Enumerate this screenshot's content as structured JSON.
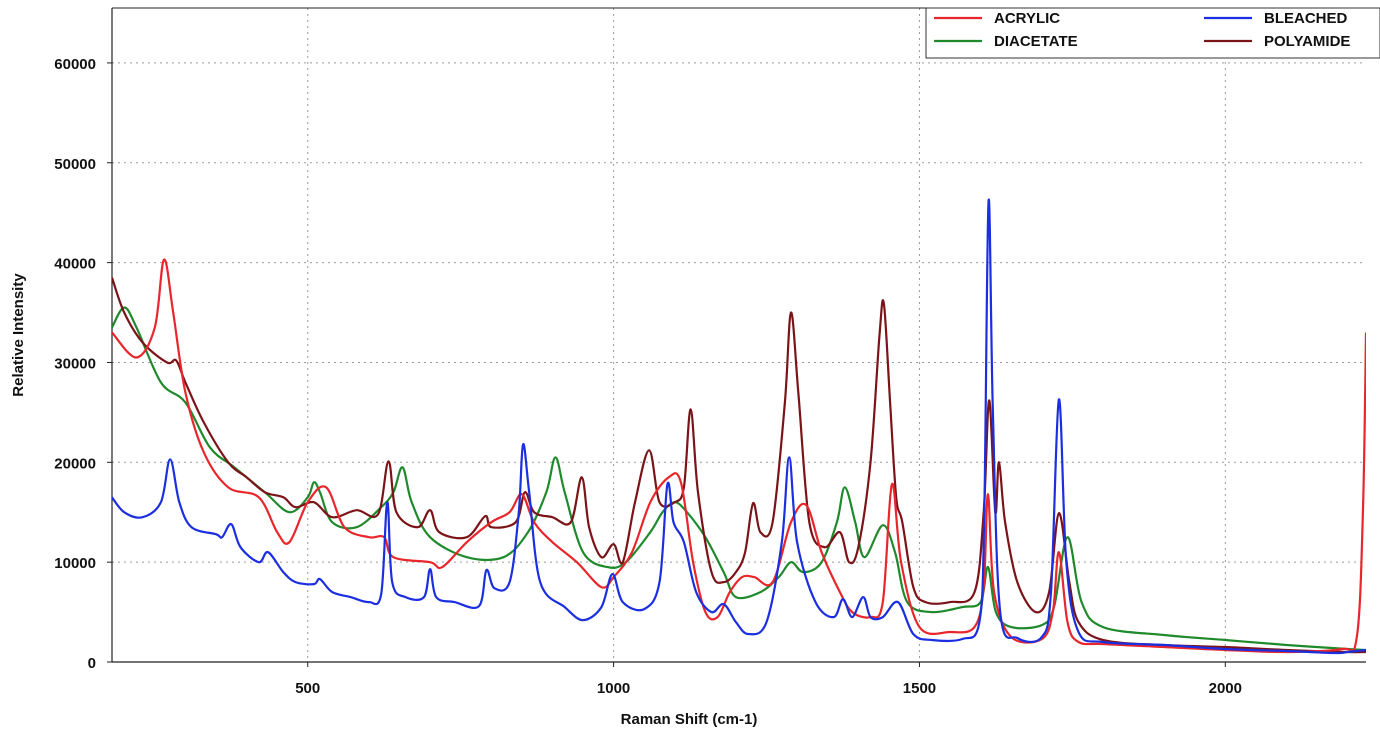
{
  "chart_data": {
    "type": "line",
    "title": "",
    "xlabel": "Raman Shift (cm-1)",
    "ylabel": "Relative Intensity",
    "xlim": [
      180,
      2230
    ],
    "ylim": [
      0,
      65500
    ],
    "x_ticks": [
      500,
      1000,
      1500,
      2000
    ],
    "x_tick_labels": [
      "500",
      "1000",
      "1500",
      "2000"
    ],
    "y_ticks": [
      0,
      10000,
      20000,
      30000,
      40000,
      50000,
      60000
    ],
    "y_tick_labels": [
      "0",
      "10000",
      "20000",
      "30000",
      "40000",
      "50000",
      "60000"
    ],
    "grid": true,
    "legend_position": "top-right",
    "series": [
      {
        "name": "ACRYLIC",
        "color": "#e8262c",
        "points": [
          [
            180,
            33000
          ],
          [
            220,
            30500
          ],
          [
            250,
            33500
          ],
          [
            265,
            40300
          ],
          [
            280,
            35000
          ],
          [
            300,
            27000
          ],
          [
            330,
            21000
          ],
          [
            370,
            17500
          ],
          [
            420,
            16500
          ],
          [
            450,
            13000
          ],
          [
            470,
            12000
          ],
          [
            500,
            16000
          ],
          [
            530,
            17500
          ],
          [
            560,
            13500
          ],
          [
            600,
            12500
          ],
          [
            625,
            12500
          ],
          [
            640,
            10500
          ],
          [
            700,
            10000
          ],
          [
            720,
            9500
          ],
          [
            760,
            12000
          ],
          [
            800,
            14000
          ],
          [
            830,
            15000
          ],
          [
            850,
            16800
          ],
          [
            870,
            14000
          ],
          [
            900,
            12000
          ],
          [
            940,
            10000
          ],
          [
            980,
            7500
          ],
          [
            1000,
            8500
          ],
          [
            1030,
            11000
          ],
          [
            1060,
            16000
          ],
          [
            1090,
            18500
          ],
          [
            1110,
            18000
          ],
          [
            1130,
            10000
          ],
          [
            1150,
            5000
          ],
          [
            1170,
            4500
          ],
          [
            1190,
            7000
          ],
          [
            1210,
            8500
          ],
          [
            1230,
            8500
          ],
          [
            1260,
            8000
          ],
          [
            1290,
            14000
          ],
          [
            1315,
            15700
          ],
          [
            1340,
            11000
          ],
          [
            1370,
            7000
          ],
          [
            1390,
            5000
          ],
          [
            1420,
            4500
          ],
          [
            1440,
            6000
          ],
          [
            1455,
            17800
          ],
          [
            1470,
            10000
          ],
          [
            1500,
            3500
          ],
          [
            1550,
            3000
          ],
          [
            1590,
            3500
          ],
          [
            1605,
            7500
          ],
          [
            1612,
            16800
          ],
          [
            1622,
            7000
          ],
          [
            1650,
            2500
          ],
          [
            1700,
            2300
          ],
          [
            1718,
            5000
          ],
          [
            1728,
            11000
          ],
          [
            1742,
            4000
          ],
          [
            1760,
            2000
          ],
          [
            1800,
            1800
          ],
          [
            1900,
            1500
          ],
          [
            2000,
            1200
          ],
          [
            2100,
            1000
          ],
          [
            2190,
            1300
          ],
          [
            2215,
            2500
          ],
          [
            2225,
            15000
          ],
          [
            2230,
            33000
          ]
        ]
      },
      {
        "name": "DIACETATE",
        "color": "#1f8a2c",
        "points": [
          [
            180,
            33500
          ],
          [
            200,
            35500
          ],
          [
            220,
            33500
          ],
          [
            260,
            28000
          ],
          [
            300,
            26000
          ],
          [
            340,
            21500
          ],
          [
            380,
            19500
          ],
          [
            430,
            17000
          ],
          [
            470,
            15000
          ],
          [
            500,
            16500
          ],
          [
            510,
            18000
          ],
          [
            520,
            17000
          ],
          [
            540,
            14000
          ],
          [
            580,
            13500
          ],
          [
            620,
            15500
          ],
          [
            640,
            17000
          ],
          [
            655,
            19500
          ],
          [
            670,
            16000
          ],
          [
            700,
            12500
          ],
          [
            760,
            10500
          ],
          [
            820,
            10500
          ],
          [
            860,
            13000
          ],
          [
            890,
            17000
          ],
          [
            905,
            20500
          ],
          [
            920,
            17000
          ],
          [
            950,
            11000
          ],
          [
            990,
            9500
          ],
          [
            1020,
            10000
          ],
          [
            1060,
            13000
          ],
          [
            1080,
            15000
          ],
          [
            1100,
            16000
          ],
          [
            1120,
            15000
          ],
          [
            1150,
            12500
          ],
          [
            1180,
            9000
          ],
          [
            1200,
            6500
          ],
          [
            1240,
            7000
          ],
          [
            1270,
            8500
          ],
          [
            1290,
            10000
          ],
          [
            1310,
            9000
          ],
          [
            1340,
            10000
          ],
          [
            1365,
            14000
          ],
          [
            1378,
            17500
          ],
          [
            1395,
            14000
          ],
          [
            1410,
            10500
          ],
          [
            1440,
            13700
          ],
          [
            1460,
            11000
          ],
          [
            1480,
            6000
          ],
          [
            1520,
            5000
          ],
          [
            1570,
            5500
          ],
          [
            1600,
            6000
          ],
          [
            1612,
            9500
          ],
          [
            1625,
            5000
          ],
          [
            1650,
            3500
          ],
          [
            1700,
            3700
          ],
          [
            1720,
            5500
          ],
          [
            1742,
            12500
          ],
          [
            1765,
            6000
          ],
          [
            1800,
            3500
          ],
          [
            1900,
            2700
          ],
          [
            2000,
            2200
          ],
          [
            2100,
            1700
          ],
          [
            2200,
            1300
          ],
          [
            2230,
            1200
          ]
        ]
      },
      {
        "name": "BLEACHED",
        "color": "#1b2fe0",
        "points": [
          [
            180,
            16500
          ],
          [
            200,
            15000
          ],
          [
            230,
            14500
          ],
          [
            260,
            16000
          ],
          [
            275,
            20300
          ],
          [
            290,
            16000
          ],
          [
            310,
            13500
          ],
          [
            350,
            12800
          ],
          [
            360,
            12500
          ],
          [
            375,
            13800
          ],
          [
            390,
            11500
          ],
          [
            420,
            10000
          ],
          [
            435,
            11000
          ],
          [
            460,
            9000
          ],
          [
            480,
            8000
          ],
          [
            510,
            7800
          ],
          [
            520,
            8300
          ],
          [
            540,
            7000
          ],
          [
            570,
            6500
          ],
          [
            600,
            6000
          ],
          [
            620,
            6800
          ],
          [
            630,
            16000
          ],
          [
            638,
            8000
          ],
          [
            660,
            6500
          ],
          [
            690,
            6500
          ],
          [
            700,
            9300
          ],
          [
            710,
            6500
          ],
          [
            740,
            6000
          ],
          [
            780,
            5600
          ],
          [
            792,
            9200
          ],
          [
            805,
            7400
          ],
          [
            830,
            8000
          ],
          [
            845,
            15000
          ],
          [
            852,
            21800
          ],
          [
            862,
            17000
          ],
          [
            880,
            8000
          ],
          [
            920,
            5500
          ],
          [
            950,
            4200
          ],
          [
            980,
            5500
          ],
          [
            998,
            8800
          ],
          [
            1015,
            6000
          ],
          [
            1050,
            5300
          ],
          [
            1075,
            8000
          ],
          [
            1088,
            17800
          ],
          [
            1098,
            14000
          ],
          [
            1115,
            12000
          ],
          [
            1135,
            7000
          ],
          [
            1160,
            5000
          ],
          [
            1180,
            5800
          ],
          [
            1200,
            4000
          ],
          [
            1220,
            2800
          ],
          [
            1250,
            4000
          ],
          [
            1275,
            12000
          ],
          [
            1287,
            20500
          ],
          [
            1300,
            12000
          ],
          [
            1330,
            6000
          ],
          [
            1360,
            4500
          ],
          [
            1375,
            6300
          ],
          [
            1390,
            4500
          ],
          [
            1408,
            6500
          ],
          [
            1420,
            4500
          ],
          [
            1440,
            4500
          ],
          [
            1465,
            6000
          ],
          [
            1490,
            2800
          ],
          [
            1520,
            2200
          ],
          [
            1570,
            2300
          ],
          [
            1598,
            4000
          ],
          [
            1606,
            15000
          ],
          [
            1613,
            46200
          ],
          [
            1620,
            25000
          ],
          [
            1632,
            5000
          ],
          [
            1660,
            2400
          ],
          [
            1700,
            2500
          ],
          [
            1715,
            7000
          ],
          [
            1728,
            26300
          ],
          [
            1740,
            10000
          ],
          [
            1760,
            3000
          ],
          [
            1800,
            2000
          ],
          [
            1900,
            1700
          ],
          [
            2000,
            1300
          ],
          [
            2100,
            1100
          ],
          [
            2180,
            900
          ],
          [
            2200,
            1000
          ],
          [
            2230,
            1200
          ]
        ]
      },
      {
        "name": "POLYAMIDE",
        "color": "#7b1418",
        "points": [
          [
            180,
            38500
          ],
          [
            200,
            35000
          ],
          [
            230,
            32000
          ],
          [
            270,
            30000
          ],
          [
            285,
            30200
          ],
          [
            300,
            28000
          ],
          [
            330,
            24000
          ],
          [
            370,
            20000
          ],
          [
            400,
            18500
          ],
          [
            430,
            17000
          ],
          [
            460,
            16500
          ],
          [
            480,
            15500
          ],
          [
            510,
            16000
          ],
          [
            540,
            14500
          ],
          [
            580,
            15200
          ],
          [
            615,
            14800
          ],
          [
            632,
            20100
          ],
          [
            645,
            15000
          ],
          [
            680,
            13500
          ],
          [
            700,
            15200
          ],
          [
            715,
            13000
          ],
          [
            760,
            12500
          ],
          [
            790,
            14600
          ],
          [
            800,
            13500
          ],
          [
            840,
            14000
          ],
          [
            855,
            17000
          ],
          [
            870,
            15000
          ],
          [
            900,
            14500
          ],
          [
            930,
            14000
          ],
          [
            948,
            18500
          ],
          [
            960,
            13500
          ],
          [
            980,
            10500
          ],
          [
            1000,
            11800
          ],
          [
            1015,
            10000
          ],
          [
            1035,
            16000
          ],
          [
            1058,
            21200
          ],
          [
            1075,
            16000
          ],
          [
            1100,
            16000
          ],
          [
            1115,
            17500
          ],
          [
            1126,
            25300
          ],
          [
            1138,
            17000
          ],
          [
            1160,
            9000
          ],
          [
            1180,
            8000
          ],
          [
            1200,
            9000
          ],
          [
            1215,
            11000
          ],
          [
            1228,
            15900
          ],
          [
            1240,
            13000
          ],
          [
            1260,
            14000
          ],
          [
            1280,
            26000
          ],
          [
            1290,
            35000
          ],
          [
            1302,
            27000
          ],
          [
            1320,
            14000
          ],
          [
            1345,
            11500
          ],
          [
            1370,
            13000
          ],
          [
            1385,
            10000
          ],
          [
            1400,
            11500
          ],
          [
            1420,
            20000
          ],
          [
            1435,
            33000
          ],
          [
            1442,
            35800
          ],
          [
            1452,
            26000
          ],
          [
            1462,
            16500
          ],
          [
            1472,
            14000
          ],
          [
            1490,
            7500
          ],
          [
            1510,
            6000
          ],
          [
            1550,
            6000
          ],
          [
            1590,
            7000
          ],
          [
            1605,
            15000
          ],
          [
            1614,
            26200
          ],
          [
            1624,
            15000
          ],
          [
            1630,
            20000
          ],
          [
            1640,
            14000
          ],
          [
            1660,
            8000
          ],
          [
            1690,
            5000
          ],
          [
            1712,
            7000
          ],
          [
            1728,
            14900
          ],
          [
            1745,
            8000
          ],
          [
            1760,
            4000
          ],
          [
            1800,
            2200
          ],
          [
            1900,
            1700
          ],
          [
            2000,
            1500
          ],
          [
            2100,
            1200
          ],
          [
            2200,
            1000
          ],
          [
            2230,
            1000
          ]
        ]
      }
    ]
  }
}
